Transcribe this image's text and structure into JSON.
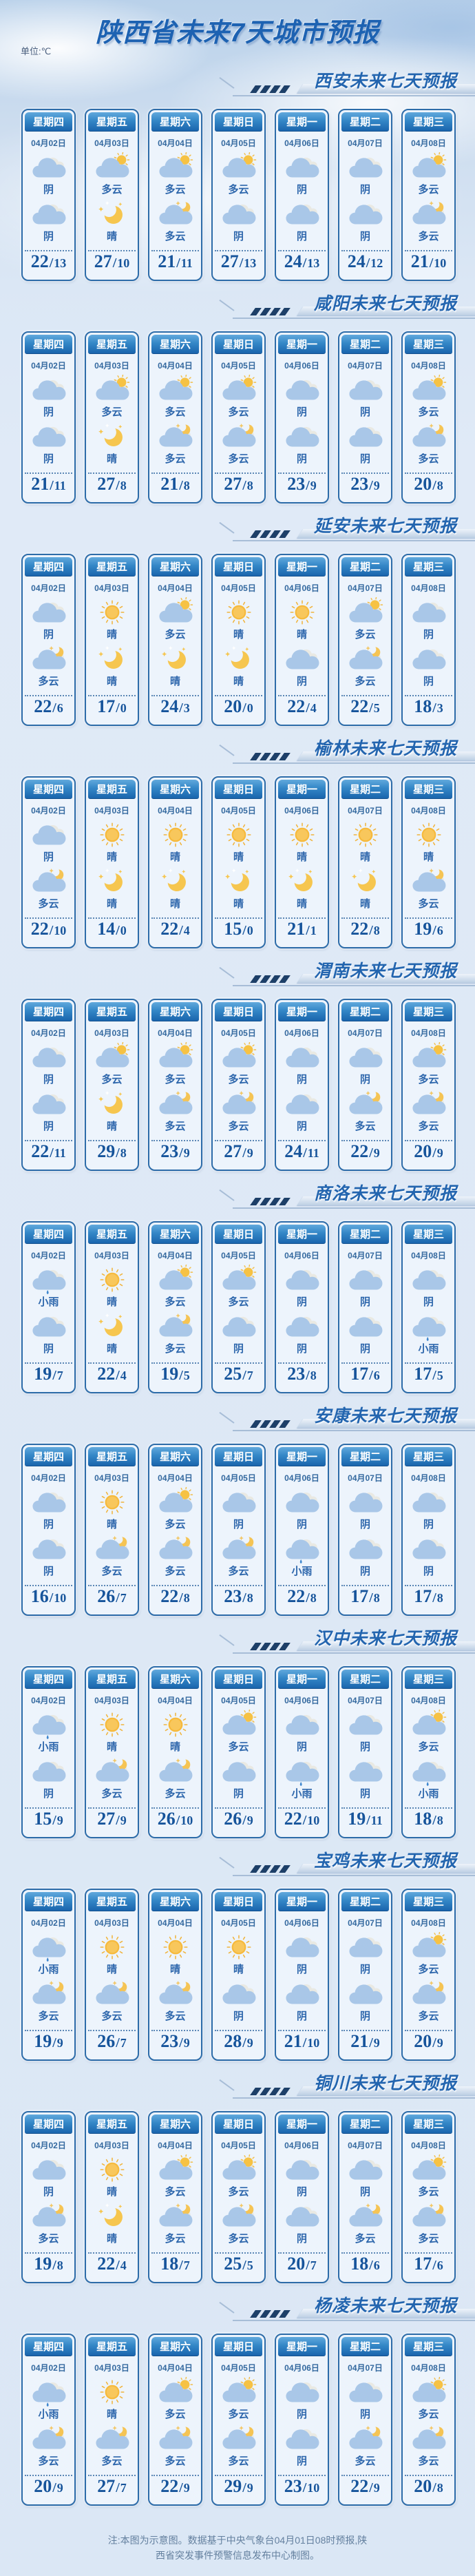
{
  "page": {
    "title": "陕西省未来7天城市预报",
    "unit_label": "单位:℃",
    "temp_separator": "/",
    "note_line1": "注:本图为示意图。数据基于中央气象台04月01日08时预报,陕",
    "note_line2": "西省突发事件预警信息发布中心制图。"
  },
  "colors": {
    "title_blue": "#1d62b2",
    "banner_title_blue": "#2365af",
    "card_border": "#2d6ca9",
    "card_header_top": "#61a9dd",
    "card_header_bottom": "#1a65ad",
    "weather_text_blue": "#2e67ac",
    "temp_blue": "#16549b",
    "cloud_blue": "#a9c7e8",
    "back_cloud_gray": "#e9e9e3",
    "sun_yellow": "#f6c244",
    "rain_drop_blue": "#3f87cf"
  },
  "weekdays": [
    "星期四",
    "星期五",
    "星期六",
    "星期日",
    "星期一",
    "星期二",
    "星期三"
  ],
  "dates": [
    "04月02日",
    "04月03日",
    "04月04日",
    "04月05日",
    "04月06日",
    "04月07日",
    "04月08日"
  ],
  "cities": [
    {
      "name": "西安未来七天预报",
      "days": [
        {
          "day": "阴",
          "day_icon": "overcast",
          "night": "阴",
          "night_icon": "overcast",
          "high": "22",
          "low": "13"
        },
        {
          "day": "多云",
          "day_icon": "cloud-sun",
          "night": "晴",
          "night_icon": "moon",
          "high": "27",
          "low": "10"
        },
        {
          "day": "多云",
          "day_icon": "cloud-sun",
          "night": "多云",
          "night_icon": "cloud-moon",
          "high": "21",
          "low": "11"
        },
        {
          "day": "多云",
          "day_icon": "cloud-sun",
          "night": "阴",
          "night_icon": "overcast",
          "high": "27",
          "low": "13"
        },
        {
          "day": "阴",
          "day_icon": "overcast",
          "night": "阴",
          "night_icon": "overcast",
          "high": "24",
          "low": "13"
        },
        {
          "day": "阴",
          "day_icon": "overcast",
          "night": "阴",
          "night_icon": "overcast",
          "high": "24",
          "low": "12"
        },
        {
          "day": "多云",
          "day_icon": "cloud-sun",
          "night": "多云",
          "night_icon": "cloud-moon",
          "high": "21",
          "low": "10"
        }
      ]
    },
    {
      "name": "咸阳未来七天预报",
      "days": [
        {
          "day": "阴",
          "day_icon": "overcast",
          "night": "阴",
          "night_icon": "overcast",
          "high": "21",
          "low": "11"
        },
        {
          "day": "多云",
          "day_icon": "cloud-sun",
          "night": "晴",
          "night_icon": "moon",
          "high": "27",
          "low": "8"
        },
        {
          "day": "多云",
          "day_icon": "cloud-sun",
          "night": "多云",
          "night_icon": "cloud-moon",
          "high": "21",
          "low": "8"
        },
        {
          "day": "多云",
          "day_icon": "cloud-sun",
          "night": "多云",
          "night_icon": "cloud-moon",
          "high": "27",
          "low": "8"
        },
        {
          "day": "阴",
          "day_icon": "overcast",
          "night": "阴",
          "night_icon": "overcast",
          "high": "23",
          "low": "9"
        },
        {
          "day": "阴",
          "day_icon": "overcast",
          "night": "阴",
          "night_icon": "overcast",
          "high": "23",
          "low": "9"
        },
        {
          "day": "多云",
          "day_icon": "cloud-sun",
          "night": "多云",
          "night_icon": "cloud-moon",
          "high": "20",
          "low": "8"
        }
      ]
    },
    {
      "name": "延安未来七天预报",
      "days": [
        {
          "day": "阴",
          "day_icon": "overcast",
          "night": "多云",
          "night_icon": "cloud-moon",
          "high": "22",
          "low": "6"
        },
        {
          "day": "晴",
          "day_icon": "sun",
          "night": "晴",
          "night_icon": "moon",
          "high": "17",
          "low": "0"
        },
        {
          "day": "多云",
          "day_icon": "cloud-sun",
          "night": "晴",
          "night_icon": "moon",
          "high": "24",
          "low": "3"
        },
        {
          "day": "晴",
          "day_icon": "sun",
          "night": "晴",
          "night_icon": "moon",
          "high": "20",
          "low": "0"
        },
        {
          "day": "晴",
          "day_icon": "sun",
          "night": "阴",
          "night_icon": "overcast",
          "high": "22",
          "low": "4"
        },
        {
          "day": "多云",
          "day_icon": "cloud-sun",
          "night": "多云",
          "night_icon": "cloud-moon",
          "high": "22",
          "low": "5"
        },
        {
          "day": "阴",
          "day_icon": "overcast",
          "night": "阴",
          "night_icon": "overcast",
          "high": "18",
          "low": "3"
        }
      ]
    },
    {
      "name": "榆林未来七天预报",
      "days": [
        {
          "day": "阴",
          "day_icon": "overcast",
          "night": "多云",
          "night_icon": "cloud-moon",
          "high": "22",
          "low": "10"
        },
        {
          "day": "晴",
          "day_icon": "sun",
          "night": "晴",
          "night_icon": "moon",
          "high": "14",
          "low": "0"
        },
        {
          "day": "晴",
          "day_icon": "sun",
          "night": "晴",
          "night_icon": "moon",
          "high": "22",
          "low": "4"
        },
        {
          "day": "晴",
          "day_icon": "sun",
          "night": "晴",
          "night_icon": "moon",
          "high": "15",
          "low": "0"
        },
        {
          "day": "晴",
          "day_icon": "sun",
          "night": "晴",
          "night_icon": "moon",
          "high": "21",
          "low": "1"
        },
        {
          "day": "晴",
          "day_icon": "sun",
          "night": "晴",
          "night_icon": "moon",
          "high": "22",
          "low": "8"
        },
        {
          "day": "晴",
          "day_icon": "sun",
          "night": "多云",
          "night_icon": "cloud-moon",
          "high": "19",
          "low": "6"
        }
      ]
    },
    {
      "name": "渭南未来七天预报",
      "days": [
        {
          "day": "阴",
          "day_icon": "overcast",
          "night": "阴",
          "night_icon": "overcast",
          "high": "22",
          "low": "11"
        },
        {
          "day": "多云",
          "day_icon": "cloud-sun",
          "night": "晴",
          "night_icon": "moon",
          "high": "29",
          "low": "8"
        },
        {
          "day": "多云",
          "day_icon": "cloud-sun",
          "night": "多云",
          "night_icon": "cloud-moon",
          "high": "23",
          "low": "9"
        },
        {
          "day": "多云",
          "day_icon": "cloud-sun",
          "night": "多云",
          "night_icon": "cloud-moon",
          "high": "27",
          "low": "9"
        },
        {
          "day": "阴",
          "day_icon": "overcast",
          "night": "阴",
          "night_icon": "overcast",
          "high": "24",
          "low": "11"
        },
        {
          "day": "阴",
          "day_icon": "overcast",
          "night": "多云",
          "night_icon": "cloud-moon",
          "high": "22",
          "low": "9"
        },
        {
          "day": "多云",
          "day_icon": "cloud-sun",
          "night": "多云",
          "night_icon": "cloud-moon",
          "high": "20",
          "low": "9"
        }
      ]
    },
    {
      "name": "商洛未来七天预报",
      "days": [
        {
          "day": "小雨",
          "day_icon": "rain",
          "night": "阴",
          "night_icon": "overcast",
          "high": "19",
          "low": "7"
        },
        {
          "day": "晴",
          "day_icon": "sun",
          "night": "晴",
          "night_icon": "moon",
          "high": "22",
          "low": "4"
        },
        {
          "day": "多云",
          "day_icon": "cloud-sun",
          "night": "多云",
          "night_icon": "cloud-moon",
          "high": "19",
          "low": "5"
        },
        {
          "day": "多云",
          "day_icon": "cloud-sun",
          "night": "阴",
          "night_icon": "overcast",
          "high": "25",
          "low": "7"
        },
        {
          "day": "阴",
          "day_icon": "overcast",
          "night": "阴",
          "night_icon": "overcast",
          "high": "23",
          "low": "8"
        },
        {
          "day": "阴",
          "day_icon": "overcast",
          "night": "阴",
          "night_icon": "overcast",
          "high": "17",
          "low": "6"
        },
        {
          "day": "阴",
          "day_icon": "overcast",
          "night": "小雨",
          "night_icon": "rain",
          "high": "17",
          "low": "5"
        }
      ]
    },
    {
      "name": "安康未来七天预报",
      "days": [
        {
          "day": "阴",
          "day_icon": "overcast",
          "night": "阴",
          "night_icon": "overcast",
          "high": "16",
          "low": "10"
        },
        {
          "day": "晴",
          "day_icon": "sun",
          "night": "多云",
          "night_icon": "cloud-moon",
          "high": "26",
          "low": "7"
        },
        {
          "day": "多云",
          "day_icon": "cloud-sun",
          "night": "多云",
          "night_icon": "cloud-moon",
          "high": "22",
          "low": "8"
        },
        {
          "day": "阴",
          "day_icon": "overcast",
          "night": "多云",
          "night_icon": "cloud-moon",
          "high": "23",
          "low": "8"
        },
        {
          "day": "阴",
          "day_icon": "overcast",
          "night": "小雨",
          "night_icon": "rain",
          "high": "22",
          "low": "8"
        },
        {
          "day": "阴",
          "day_icon": "overcast",
          "night": "阴",
          "night_icon": "overcast",
          "high": "17",
          "low": "8"
        },
        {
          "day": "阴",
          "day_icon": "overcast",
          "night": "阴",
          "night_icon": "overcast",
          "high": "17",
          "low": "8"
        }
      ]
    },
    {
      "name": "汉中未来七天预报",
      "days": [
        {
          "day": "小雨",
          "day_icon": "rain",
          "night": "阴",
          "night_icon": "overcast",
          "high": "15",
          "low": "9"
        },
        {
          "day": "晴",
          "day_icon": "sun",
          "night": "多云",
          "night_icon": "cloud-moon",
          "high": "27",
          "low": "9"
        },
        {
          "day": "晴",
          "day_icon": "sun",
          "night": "多云",
          "night_icon": "cloud-moon",
          "high": "26",
          "low": "10"
        },
        {
          "day": "多云",
          "day_icon": "cloud-sun",
          "night": "阴",
          "night_icon": "overcast",
          "high": "26",
          "low": "9"
        },
        {
          "day": "阴",
          "day_icon": "overcast",
          "night": "小雨",
          "night_icon": "rain",
          "high": "22",
          "low": "10"
        },
        {
          "day": "阴",
          "day_icon": "overcast",
          "night": "阴",
          "night_icon": "overcast",
          "high": "19",
          "low": "11"
        },
        {
          "day": "多云",
          "day_icon": "cloud-sun",
          "night": "小雨",
          "night_icon": "rain",
          "high": "18",
          "low": "8"
        }
      ]
    },
    {
      "name": "宝鸡未来七天预报",
      "days": [
        {
          "day": "小雨",
          "day_icon": "rain",
          "night": "多云",
          "night_icon": "cloud-moon",
          "high": "19",
          "low": "9"
        },
        {
          "day": "晴",
          "day_icon": "sun",
          "night": "多云",
          "night_icon": "cloud-moon",
          "high": "26",
          "low": "7"
        },
        {
          "day": "晴",
          "day_icon": "sun",
          "night": "多云",
          "night_icon": "cloud-moon",
          "high": "23",
          "low": "9"
        },
        {
          "day": "晴",
          "day_icon": "sun",
          "night": "阴",
          "night_icon": "overcast",
          "high": "28",
          "low": "9"
        },
        {
          "day": "阴",
          "day_icon": "overcast",
          "night": "阴",
          "night_icon": "overcast",
          "high": "21",
          "low": "10"
        },
        {
          "day": "阴",
          "day_icon": "overcast",
          "night": "阴",
          "night_icon": "overcast",
          "high": "21",
          "low": "9"
        },
        {
          "day": "多云",
          "day_icon": "cloud-sun",
          "night": "多云",
          "night_icon": "cloud-moon",
          "high": "20",
          "low": "9"
        }
      ]
    },
    {
      "name": "铜川未来七天预报",
      "days": [
        {
          "day": "阴",
          "day_icon": "overcast",
          "night": "多云",
          "night_icon": "cloud-moon",
          "high": "19",
          "low": "8"
        },
        {
          "day": "晴",
          "day_icon": "sun",
          "night": "晴",
          "night_icon": "moon",
          "high": "22",
          "low": "4"
        },
        {
          "day": "多云",
          "day_icon": "cloud-sun",
          "night": "多云",
          "night_icon": "cloud-moon",
          "high": "18",
          "low": "7"
        },
        {
          "day": "多云",
          "day_icon": "cloud-sun",
          "night": "多云",
          "night_icon": "cloud-moon",
          "high": "25",
          "low": "5"
        },
        {
          "day": "阴",
          "day_icon": "overcast",
          "night": "阴",
          "night_icon": "overcast",
          "high": "20",
          "low": "7"
        },
        {
          "day": "阴",
          "day_icon": "overcast",
          "night": "多云",
          "night_icon": "cloud-moon",
          "high": "18",
          "low": "6"
        },
        {
          "day": "多云",
          "day_icon": "cloud-sun",
          "night": "多云",
          "night_icon": "cloud-moon",
          "high": "17",
          "low": "6"
        }
      ]
    },
    {
      "name": "杨凌未来七天预报",
      "days": [
        {
          "day": "小雨",
          "day_icon": "rain",
          "night": "多云",
          "night_icon": "cloud-moon",
          "high": "20",
          "low": "9"
        },
        {
          "day": "晴",
          "day_icon": "sun",
          "night": "多云",
          "night_icon": "cloud-moon",
          "high": "27",
          "low": "7"
        },
        {
          "day": "多云",
          "day_icon": "cloud-sun",
          "night": "多云",
          "night_icon": "cloud-moon",
          "high": "22",
          "low": "9"
        },
        {
          "day": "多云",
          "day_icon": "cloud-sun",
          "night": "多云",
          "night_icon": "cloud-moon",
          "high": "29",
          "low": "9"
        },
        {
          "day": "阴",
          "day_icon": "overcast",
          "night": "阴",
          "night_icon": "overcast",
          "high": "23",
          "low": "10"
        },
        {
          "day": "阴",
          "day_icon": "overcast",
          "night": "多云",
          "night_icon": "cloud-moon",
          "high": "22",
          "low": "9"
        },
        {
          "day": "多云",
          "day_icon": "cloud-sun",
          "night": "多云",
          "night_icon": "cloud-moon",
          "high": "20",
          "low": "8"
        }
      ]
    }
  ]
}
